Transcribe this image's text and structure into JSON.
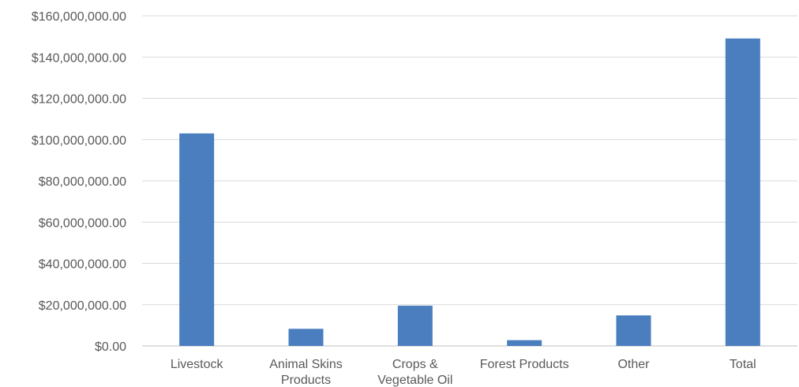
{
  "chart_data": {
    "type": "bar",
    "title": "",
    "xlabel": "",
    "ylabel": "",
    "categories": [
      [
        "Livestock"
      ],
      [
        "Animal Skins",
        "Products"
      ],
      [
        "Crops &",
        "Vegetable Oil"
      ],
      [
        "Forest Products"
      ],
      [
        "Other"
      ],
      [
        "Total"
      ]
    ],
    "values": [
      103000000,
      8300000,
      19500000,
      2800000,
      14800000,
      149000000
    ],
    "ylim": [
      0,
      160000000
    ],
    "yticks": [
      0,
      20000000,
      40000000,
      60000000,
      80000000,
      100000000,
      120000000,
      140000000,
      160000000
    ],
    "ytick_labels": [
      "$0.00",
      "$20,000,000.00",
      "$40,000,000.00",
      "$60,000,000.00",
      "$80,000,000.00",
      "$100,000,000.00",
      "$120,000,000.00",
      "$140,000,000.00",
      "$160,000,000.00"
    ],
    "grid": true,
    "legend": "none",
    "bar_color": "#4a7ebf"
  }
}
